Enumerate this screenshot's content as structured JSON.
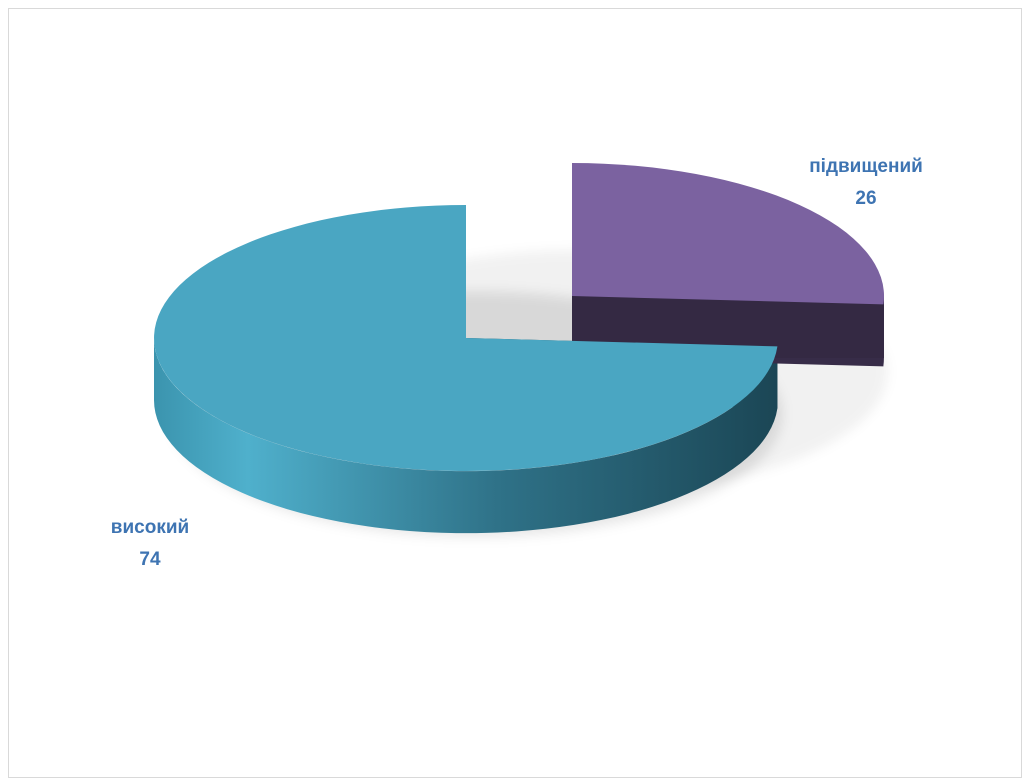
{
  "chart_data": {
    "type": "pie",
    "style": "3d-exploded",
    "title": "",
    "categories": [
      "високий",
      "підвищений"
    ],
    "values": [
      74,
      26
    ],
    "colors": [
      "#4AA6C2",
      "#7B62A0"
    ],
    "label_color": "#3E74B2",
    "legend": "none",
    "data_labels": "category-and-value"
  }
}
